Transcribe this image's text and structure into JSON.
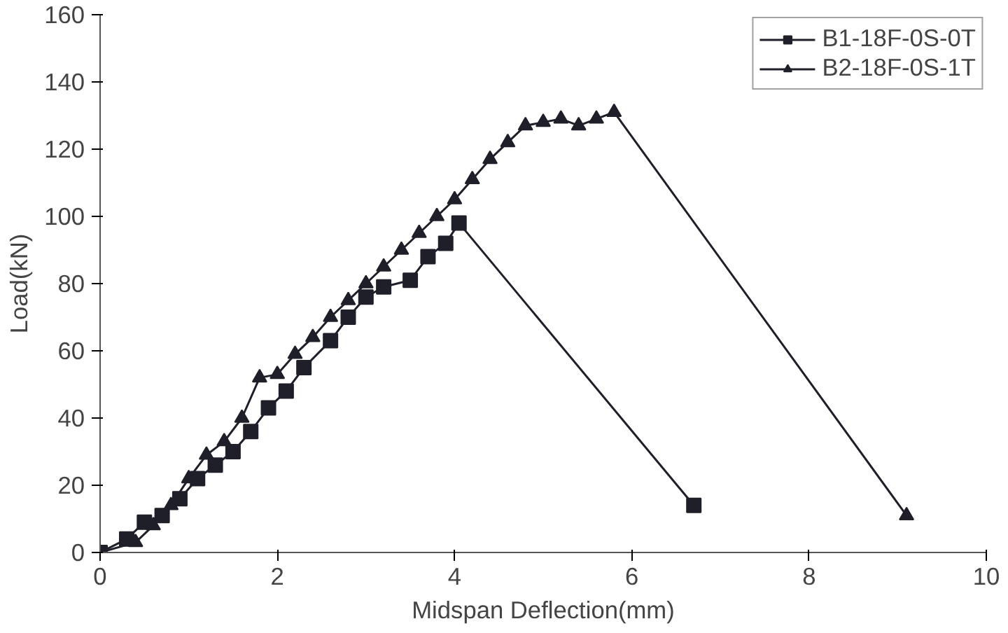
{
  "chart_data": {
    "type": "line",
    "xlabel": "Midspan Deflection(mm)",
    "ylabel": "Load(kN)",
    "xlim": [
      0,
      10
    ],
    "xticks": [
      0,
      2,
      4,
      6,
      8,
      10
    ],
    "ylim": [
      0,
      160
    ],
    "yticks": [
      0,
      20,
      40,
      60,
      80,
      100,
      120,
      140,
      160
    ],
    "grid": false,
    "legend": "top right",
    "series": [
      {
        "name": "B1-18F-0S-0T",
        "color": "#1f1f2a",
        "marker": "square",
        "x": [
          0,
          0.3,
          0.5,
          0.7,
          0.9,
          1.1,
          1.3,
          1.5,
          1.7,
          1.9,
          2.1,
          2.3,
          2.6,
          2.8,
          3.0,
          3.2,
          3.5,
          3.7,
          3.9,
          4.05,
          6.7
        ],
        "values": [
          0,
          4,
          9,
          11,
          16,
          22,
          26,
          30,
          36,
          43,
          48,
          55,
          63,
          70,
          76,
          79,
          81,
          88,
          92,
          98,
          14
        ]
      },
      {
        "name": "B2-18F-0S-1T",
        "color": "#1f1f2a",
        "marker": "triangle",
        "x": [
          0,
          0.4,
          0.6,
          0.8,
          1.0,
          1.2,
          1.4,
          1.6,
          1.8,
          2.0,
          2.2,
          2.4,
          2.6,
          2.8,
          3.0,
          3.2,
          3.4,
          3.6,
          3.8,
          4.0,
          4.2,
          4.4,
          4.6,
          4.8,
          5.0,
          5.2,
          5.4,
          5.6,
          5.8,
          9.1
        ],
        "values": [
          0,
          3,
          8,
          14,
          22,
          29,
          33,
          40,
          52,
          53,
          59,
          64,
          70,
          75,
          80,
          85,
          90,
          95,
          100,
          105,
          111,
          117,
          122,
          127,
          128,
          129,
          127,
          129,
          131,
          11
        ]
      }
    ]
  }
}
